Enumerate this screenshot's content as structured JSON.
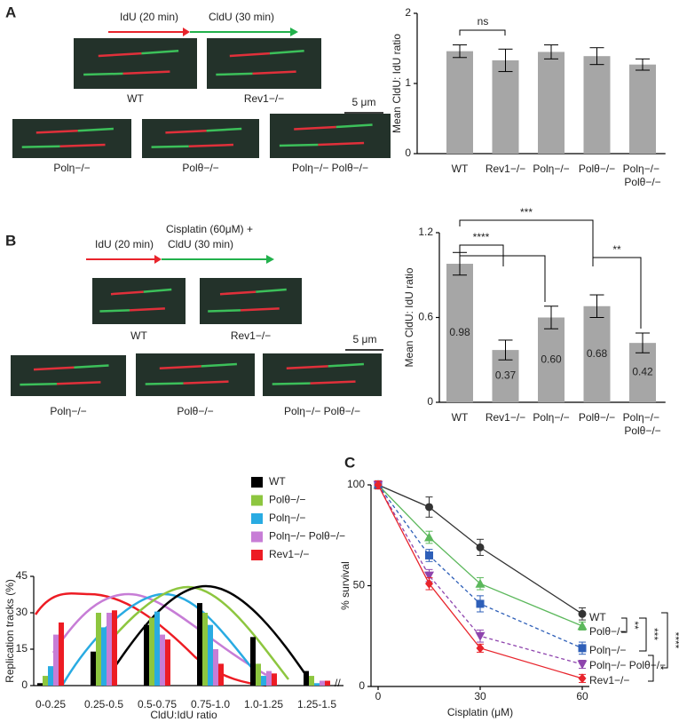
{
  "figure": {
    "A": {
      "label": "A",
      "pulse1": "IdU (20 min)",
      "pulse2": "CldU (30 min)",
      "captions": [
        "WT",
        "Rev1−/−",
        "Polη−/−",
        "Polθ−/−",
        "Polη−/− Polθ−/−"
      ],
      "scale_bar": "5 μm"
    },
    "B": {
      "label": "B",
      "pulse1": "IdU (20 min)",
      "pulse2": [
        "Cisplatin (60μM) +",
        "CldU (30 min)"
      ],
      "captions": [
        "WT",
        "Rev1−/−",
        "Polη−/−",
        "Polθ−/−",
        "Polη−/− Polθ−/−"
      ],
      "scale_bar": "5 μm"
    },
    "C": {
      "label": "C"
    }
  },
  "chart_data": [
    {
      "type": "bar",
      "y_label": "Mean CldU: IdU ratio",
      "categories": [
        "WT",
        "Rev1−/−",
        "Polη−/−",
        "Polθ−/−",
        "Polη−/− Polθ−/−"
      ],
      "values": [
        1.46,
        1.33,
        1.45,
        1.39,
        1.27
      ],
      "errors": [
        0.09,
        0.16,
        0.1,
        0.12,
        0.08
      ],
      "color": "#a6a6a6",
      "ylim": [
        0,
        2
      ],
      "yticks": [
        0,
        1,
        2
      ],
      "annotations": [
        "ns"
      ]
    },
    {
      "type": "bar",
      "y_label": "Mean CldU: IdU ratio",
      "categories": [
        "WT",
        "Rev1−/−",
        "Polη−/−",
        "Polθ−/−",
        "Polη−/− Polθ−/−"
      ],
      "values": [
        0.98,
        0.37,
        0.6,
        0.68,
        0.42
      ],
      "value_labels": [
        "0.98",
        "0.37",
        "0.60",
        "0.68",
        "0.42"
      ],
      "errors": [
        0.08,
        0.07,
        0.08,
        0.08,
        0.07
      ],
      "color": "#a6a6a6",
      "ylim": [
        0,
        1.2
      ],
      "yticks": [
        0,
        0.6,
        1.2
      ],
      "annotations": [
        "****",
        "***",
        "**"
      ]
    },
    {
      "type": "grouped_bar",
      "y_label": "Replication tracks (%)",
      "x_label": "CldU:IdU ratio",
      "categories": [
        "0-0.25",
        "0.25-0.5",
        "0.5-0.75",
        "0.75-1.0",
        "1.0-1.25",
        "1.25-1.5"
      ],
      "series": [
        {
          "name": "WT",
          "color": "#000000",
          "values": [
            1,
            14,
            25,
            34,
            20,
            6
          ]
        },
        {
          "name": "Polθ−/−",
          "color": "#8dc63f",
          "values": [
            4,
            30,
            28,
            30,
            9,
            4
          ]
        },
        {
          "name": "Polη−/−",
          "color": "#29abe2",
          "values": [
            8,
            24,
            30.5,
            25,
            4,
            1
          ]
        },
        {
          "name": "Polη−/− Polθ−/−",
          "color": "#c77dd6",
          "values": [
            21,
            30,
            21,
            15,
            6,
            2
          ]
        },
        {
          "name": "Rev1−/−",
          "color": "#ed1c24",
          "values": [
            26,
            31,
            19,
            9,
            5,
            2
          ]
        }
      ],
      "ylim": [
        0,
        45
      ],
      "yticks": [
        0,
        15,
        30,
        45
      ]
    },
    {
      "type": "line",
      "y_label": "% survival",
      "x_label": "Cisplatin (μM)",
      "x": [
        0,
        15,
        30,
        60
      ],
      "series": [
        {
          "name": "WT",
          "color": "#333333",
          "marker": "circle",
          "dashed": false,
          "values": [
            100,
            89,
            69,
            36
          ],
          "errors": [
            2,
            5,
            4,
            3
          ]
        },
        {
          "name": "Polθ−/−",
          "color": "#5cb85c",
          "marker": "triangle",
          "dashed": false,
          "values": [
            100,
            74,
            51,
            30
          ],
          "errors": [
            2,
            3,
            3,
            2
          ]
        },
        {
          "name": "Polη−/−",
          "color": "#2e5fb8",
          "marker": "square",
          "dashed": true,
          "values": [
            100,
            65,
            41,
            19
          ],
          "errors": [
            2,
            3,
            4,
            3
          ]
        },
        {
          "name": "Polη−/− Polθ−/−",
          "color": "#8e44ad",
          "marker": "triangle-down",
          "dashed": true,
          "values": [
            100,
            55,
            25,
            11
          ],
          "errors": [
            2,
            3,
            3,
            2
          ]
        },
        {
          "name": "Rev1−/−",
          "color": "#e8242c",
          "marker": "diamond",
          "dashed": false,
          "values": [
            100,
            51,
            19,
            4
          ],
          "errors": [
            2,
            3,
            2,
            2
          ]
        }
      ],
      "xlim": [
        0,
        60
      ],
      "xticks": [
        0,
        30,
        60
      ],
      "ylim": [
        0,
        100
      ],
      "yticks": [
        0,
        50,
        100
      ],
      "annotations": [
        "**",
        "***",
        "****",
        "*"
      ]
    }
  ]
}
